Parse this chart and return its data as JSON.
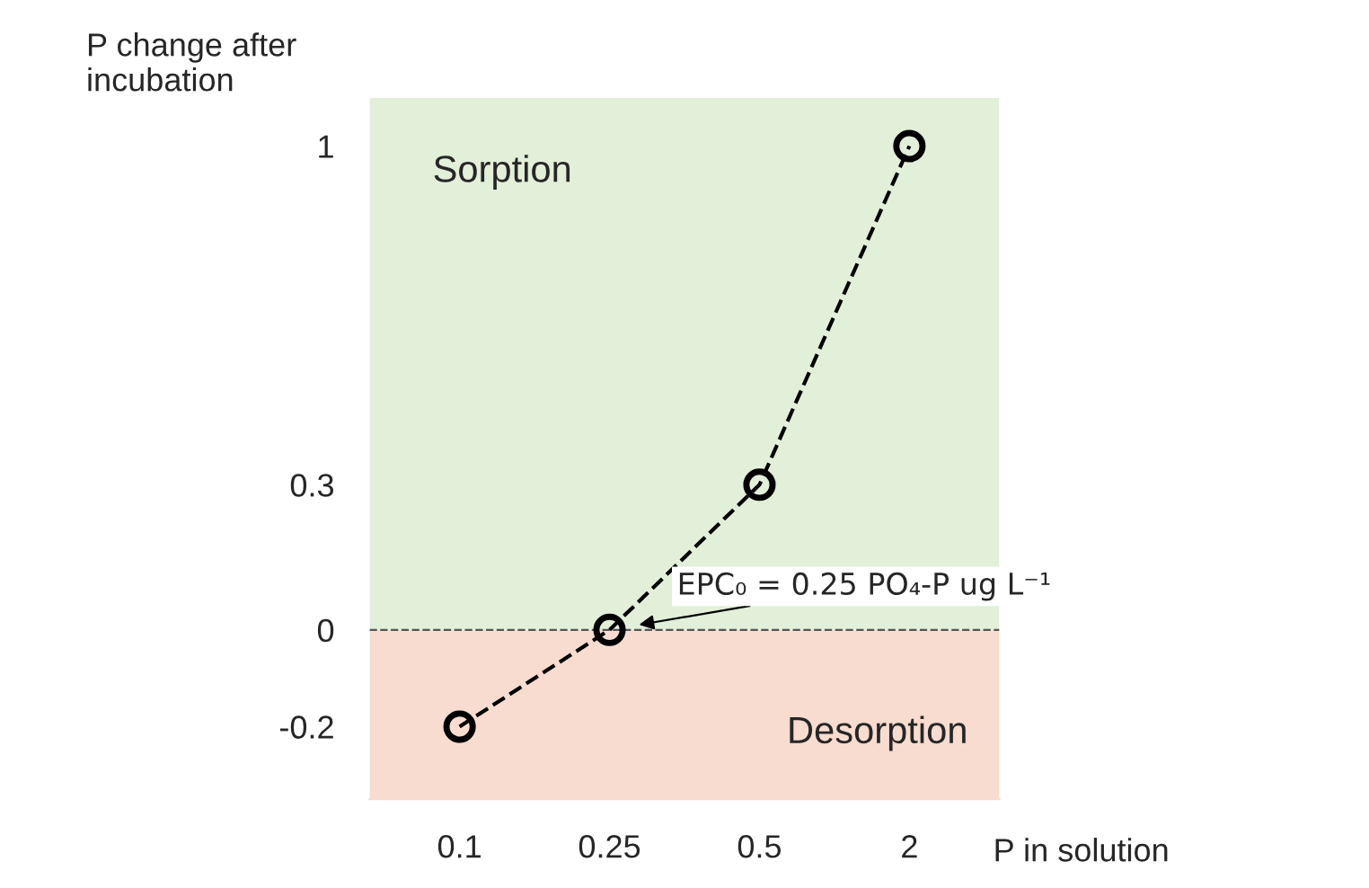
{
  "chart_data": {
    "type": "line",
    "xlabel": "P in solution",
    "ylabel": "P change after\nincubation",
    "categories": [
      "0.1",
      "0.25",
      "0.5",
      "2"
    ],
    "series": [
      {
        "color": "#000000",
        "values": [
          -0.2,
          0,
          0.3,
          1
        ]
      }
    ],
    "marker": "circle",
    "line_style": "dashed",
    "ylim": [
      -0.35,
      1.1
    ],
    "yticks": [
      -0.2,
      0,
      0.3,
      1
    ],
    "grid": false,
    "legend": false,
    "bands": [
      {
        "axis": "y",
        "from": 0,
        "to": 1.1,
        "label": "Sorption",
        "color": "#e2efd9"
      },
      {
        "axis": "y",
        "from": -0.35,
        "to": 0,
        "label": "Desorption",
        "color": "#f8dccf"
      }
    ],
    "ref_lines": [
      {
        "axis": "y",
        "value": 0,
        "color": "#555555",
        "line_style": "dashed"
      }
    ],
    "annotations": [
      {
        "text": "EPC₀ = 0.25 PO₄-P ug L⁻¹",
        "x": "0.25",
        "y": 0
      }
    ]
  }
}
